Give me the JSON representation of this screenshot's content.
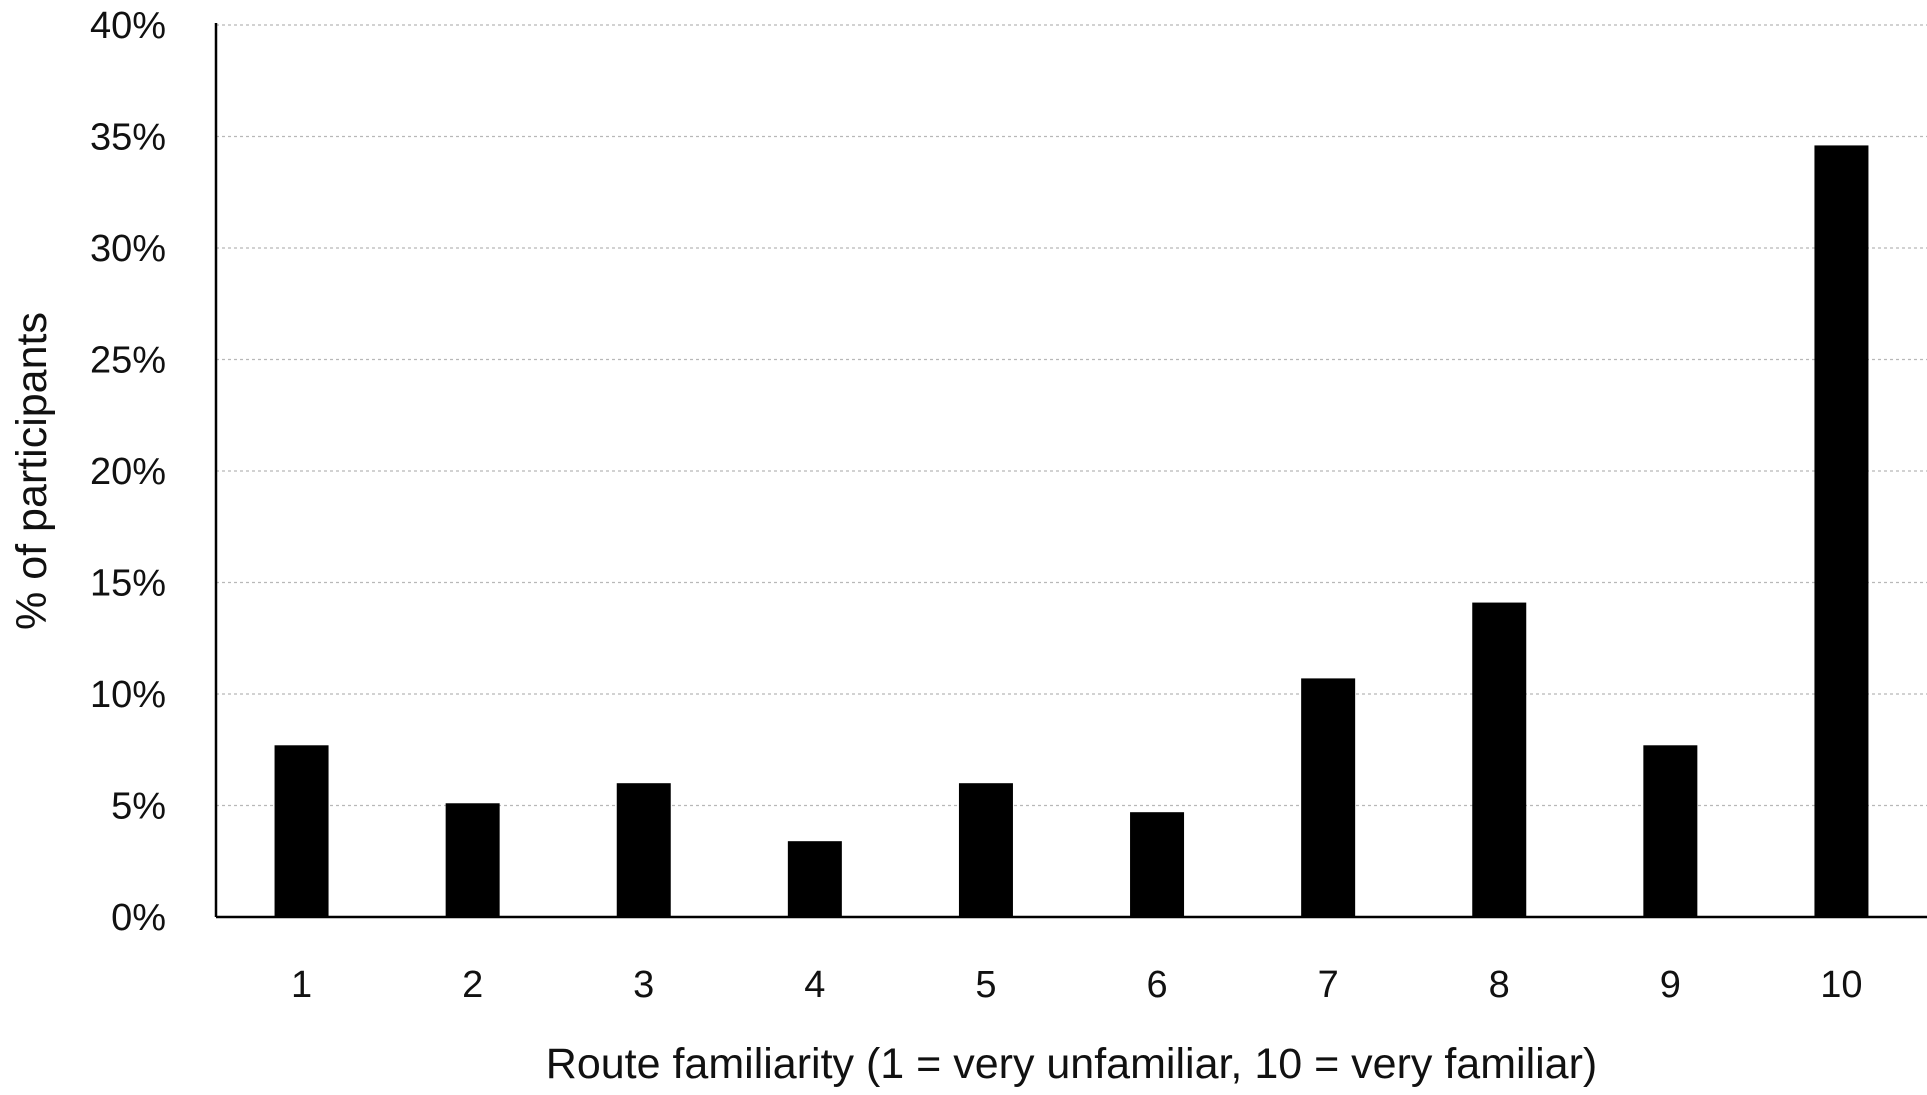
{
  "chart_data": {
    "type": "bar",
    "title": "",
    "xlabel": "Route familiarity (1 = very unfamiliar, 10 = very familiar)",
    "ylabel": "% of participants",
    "categories": [
      "1",
      "2",
      "3",
      "4",
      "5",
      "6",
      "7",
      "8",
      "9",
      "10"
    ],
    "values": [
      7.7,
      5.1,
      6.0,
      3.4,
      6.0,
      4.7,
      10.7,
      14.1,
      7.7,
      34.6
    ],
    "value_unit": "%",
    "ylim": [
      0,
      40
    ],
    "yticks": [
      0,
      5,
      10,
      15,
      20,
      25,
      30,
      35,
      40
    ],
    "ytick_labels": [
      "0%",
      "5%",
      "10%",
      "15%",
      "20%",
      "25%",
      "30%",
      "35%",
      "40%"
    ],
    "grid": true,
    "grid_style": "dashed-horizontal",
    "legend": "none",
    "bar_color": "#000000",
    "grid_color": "#b8b8b8"
  }
}
